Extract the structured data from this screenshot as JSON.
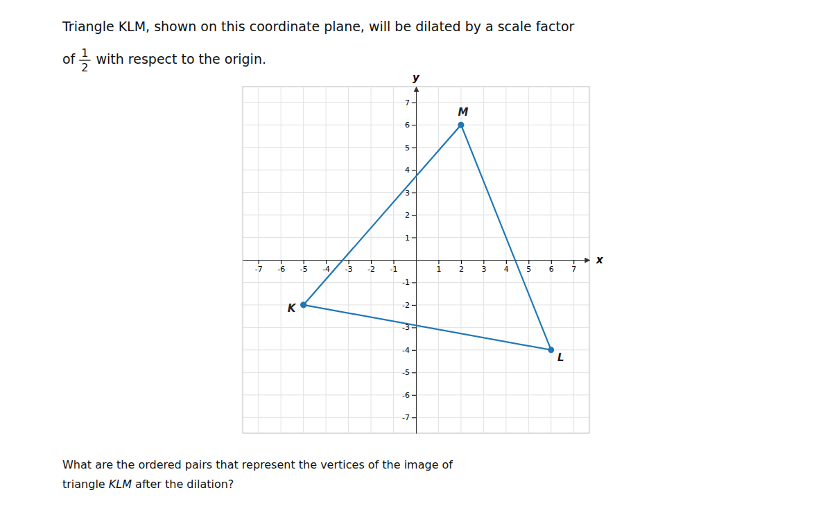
{
  "chart_data": {
    "type": "line",
    "title": [
      "Triangle KLM, shown on this coordinate plane, will be dilated by a scale factor",
      "of ",
      "1",
      "2",
      " with respect to the origin."
    ],
    "annotations": [
      "What are the ordered pairs that represent the vertices of the image of",
      "triangle ",
      "KLM",
      " after the dilation?"
    ],
    "x_label": "x",
    "y_label": "y",
    "series": [
      {
        "x": [
          -5,
          2,
          6,
          -5
        ],
        "values": [
          -2,
          6,
          -4,
          -2
        ],
        "labels": [
          "K",
          "M",
          "L",
          null
        ],
        "marker": "circle"
      }
    ],
    "xlim": [
      -7.7,
      7.7
    ],
    "ylim": [
      -7.7,
      7.7
    ],
    "xticks": [
      -7,
      -6,
      -5,
      -4,
      -3,
      -2,
      -1,
      1,
      2,
      3,
      4,
      5,
      6,
      7
    ],
    "yticks": [
      -7,
      -6,
      -5,
      -4,
      -3,
      -2,
      -1,
      1,
      2,
      3,
      4,
      5,
      6,
      7
    ],
    "grid": true
  }
}
